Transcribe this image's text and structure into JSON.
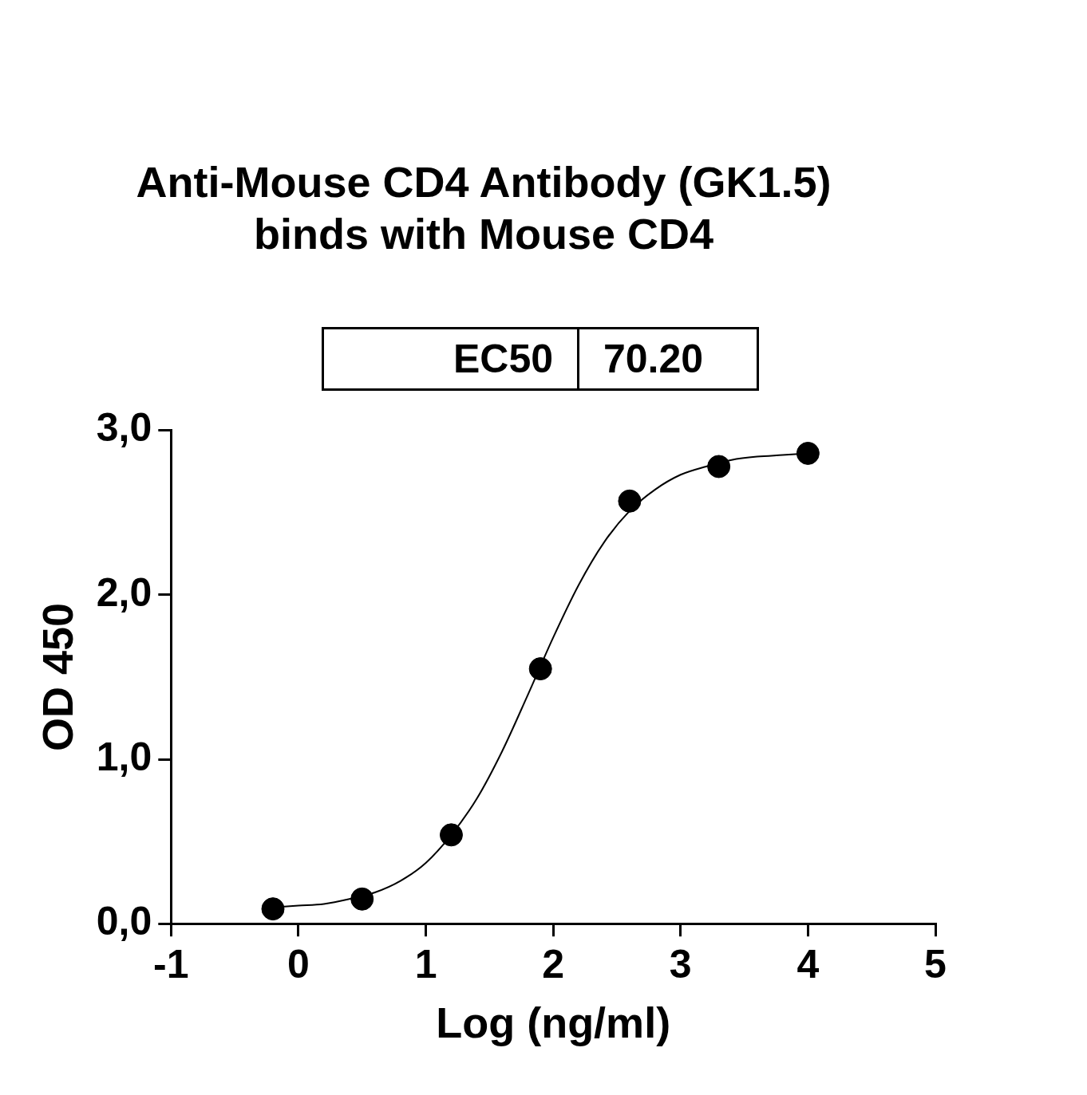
{
  "chart_data": {
    "type": "scatter",
    "title": "Anti-Mouse CD4 Antibody (GK1.5)\nbinds with Mouse CD4",
    "xlabel": "Log (ng/ml)",
    "ylabel": "OD 450",
    "annotations": [
      "EC50",
      "70.20"
    ],
    "series": [
      {
        "color": "#000000",
        "marker": "circle",
        "x": [
          -0.2,
          0.5,
          1.2,
          1.9,
          2.6,
          3.3,
          4.0
        ],
        "values": [
          0.09,
          0.15,
          0.54,
          1.55,
          2.57,
          2.78,
          2.86
        ]
      },
      {
        "type": "line",
        "color": "#000000",
        "marker": "none",
        "x": [
          -0.2,
          0,
          0.2,
          0.4,
          0.6,
          0.8,
          1.0,
          1.2,
          1.4,
          1.6,
          1.8,
          2.0,
          2.2,
          2.4,
          2.6,
          2.8,
          3.0,
          3.2,
          3.4,
          3.6,
          3.8,
          4.0
        ],
        "values": [
          0.1,
          0.11,
          0.12,
          0.15,
          0.19,
          0.26,
          0.37,
          0.54,
          0.76,
          1.05,
          1.39,
          1.74,
          2.06,
          2.32,
          2.51,
          2.64,
          2.73,
          2.78,
          2.82,
          2.84,
          2.85,
          2.86
        ]
      }
    ],
    "xlim": [
      -1,
      5
    ],
    "xticks": [
      -1,
      0,
      1,
      2,
      3,
      4,
      5
    ],
    "ylim": [
      0,
      3
    ],
    "yticks": [
      {
        "value": 0,
        "label": "0,0"
      },
      {
        "value": 1,
        "label": "1,0"
      },
      {
        "value": 2,
        "label": "2,0"
      },
      {
        "value": 3,
        "label": "3,0"
      }
    ]
  }
}
